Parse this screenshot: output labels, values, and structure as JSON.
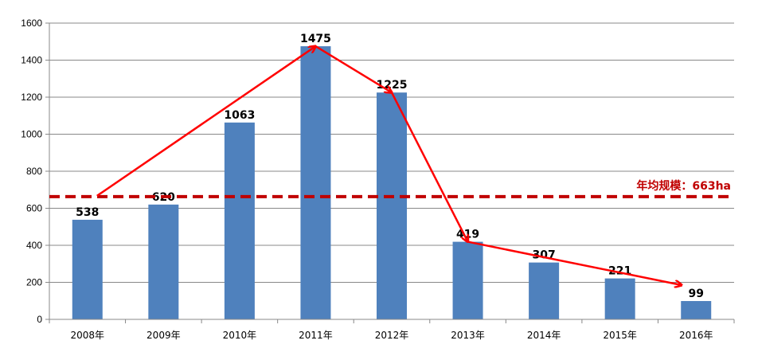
{
  "chart_data": {
    "type": "bar",
    "categories": [
      "2008年",
      "2009年",
      "2010年",
      "2011年",
      "2012年",
      "2013年",
      "2014年",
      "2015年",
      "2016年"
    ],
    "values": [
      538,
      620,
      1063,
      1475,
      1225,
      419,
      307,
      221,
      99
    ],
    "ylim": [
      0,
      1600
    ],
    "yticks": [
      0,
      200,
      400,
      600,
      800,
      1000,
      1200,
      1400,
      1600
    ],
    "grid": true,
    "bar_color": "#4f81bd",
    "reference_line": {
      "value": 663,
      "label": "年均规模：663ha",
      "color": "#c00000",
      "style": "dashed"
    },
    "trend_arrows": {
      "color": "#ff0000",
      "path_categories": [
        "2008年",
        "2011年",
        "2012年",
        "2013年",
        "2016年"
      ]
    }
  }
}
